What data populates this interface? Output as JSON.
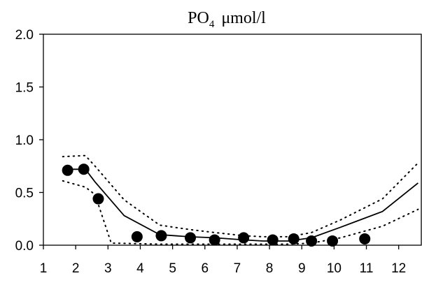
{
  "chart_data": {
    "type": "line",
    "title": {
      "main": "PO",
      "subscript": "4",
      "unit": "μmol/l"
    },
    "xlabel": "",
    "ylabel": "",
    "xlim": [
      1,
      12.7
    ],
    "ylim": [
      0,
      2.0
    ],
    "x_ticks": [
      1,
      2,
      3,
      4,
      5,
      6,
      7,
      8,
      9,
      10,
      11,
      12
    ],
    "y_ticks": [
      0.0,
      0.5,
      1.0,
      1.5,
      2.0
    ],
    "y_tick_labels": [
      "0.0",
      "0.5",
      "1.0",
      "1.5",
      "2.0"
    ],
    "grid": false,
    "legend": "none",
    "series": [
      {
        "style": "solid-line",
        "color": "#000000",
        "x": [
          1.6,
          2.3,
          2.6,
          3.5,
          4.6,
          5.5,
          6.3,
          7.2,
          7.8,
          8.6,
          9.3,
          10.2,
          11.5,
          12.6
        ],
        "y": [
          0.72,
          0.72,
          0.6,
          0.28,
          0.1,
          0.08,
          0.07,
          0.05,
          0.04,
          0.04,
          0.07,
          0.17,
          0.32,
          0.59
        ]
      },
      {
        "style": "dotted-line",
        "color": "#000000",
        "x": [
          1.6,
          2.3,
          2.6,
          3.5,
          4.6,
          5.5,
          6.3,
          7.2,
          7.8,
          8.6,
          9.3,
          10.2,
          11.5,
          12.6
        ],
        "y": [
          0.84,
          0.85,
          0.75,
          0.43,
          0.19,
          0.15,
          0.12,
          0.09,
          0.08,
          0.08,
          0.12,
          0.24,
          0.44,
          0.78
        ]
      },
      {
        "style": "dotted-line",
        "color": "#000000",
        "x": [
          1.6,
          2.3,
          2.6,
          3.1,
          4.6,
          5.5,
          6.3,
          7.2,
          7.8,
          8.6,
          9.3,
          10.2,
          11.5,
          12.6
        ],
        "y": [
          0.61,
          0.55,
          0.48,
          0.02,
          0.01,
          0.01,
          0.01,
          0.01,
          0.01,
          0.01,
          0.02,
          0.07,
          0.18,
          0.34
        ]
      },
      {
        "style": "scatter",
        "color": "#000000",
        "x": [
          1.75,
          2.25,
          2.7,
          3.9,
          4.65,
          5.55,
          6.3,
          7.2,
          8.1,
          8.75,
          9.3,
          9.95,
          10.95
        ],
        "y": [
          0.71,
          0.72,
          0.44,
          0.08,
          0.09,
          0.07,
          0.05,
          0.07,
          0.05,
          0.06,
          0.04,
          0.04,
          0.06
        ]
      }
    ]
  }
}
